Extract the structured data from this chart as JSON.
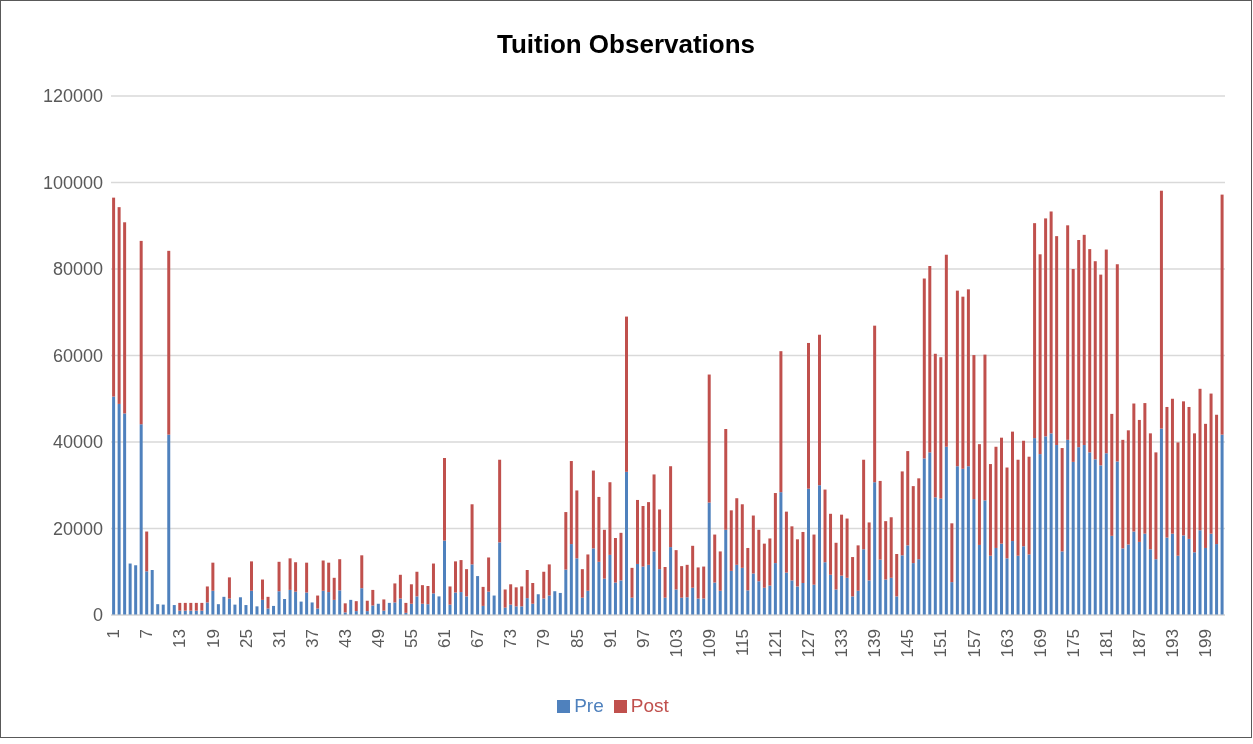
{
  "chart_data": {
    "type": "bar",
    "title": "Tuition Observations",
    "stacked": true,
    "grid": "y",
    "legend": "bottom",
    "ylim": [
      0,
      120000
    ],
    "yticks": [
      0,
      20000,
      40000,
      60000,
      80000,
      100000,
      120000
    ],
    "categories": [
      "1",
      null,
      null,
      null,
      null,
      null,
      "7",
      null,
      null,
      null,
      null,
      null,
      "13",
      null,
      null,
      null,
      null,
      null,
      "19",
      null,
      null,
      null,
      null,
      null,
      "25",
      null,
      null,
      null,
      null,
      null,
      "31",
      null,
      null,
      null,
      null,
      null,
      "37",
      null,
      null,
      null,
      null,
      null,
      "43",
      null,
      null,
      null,
      null,
      null,
      "49",
      null,
      null,
      null,
      null,
      null,
      "55",
      null,
      null,
      null,
      null,
      null,
      "61",
      null,
      null,
      null,
      null,
      null,
      "67",
      null,
      null,
      null,
      null,
      null,
      "73",
      null,
      null,
      null,
      null,
      null,
      "79",
      null,
      null,
      null,
      null,
      null,
      "85",
      null,
      null,
      null,
      null,
      null,
      "91",
      null,
      null,
      null,
      null,
      null,
      "97",
      null,
      null,
      null,
      null,
      null,
      "103",
      null,
      null,
      null,
      null,
      null,
      "109",
      null,
      null,
      null,
      null,
      null,
      "115",
      null,
      null,
      null,
      null,
      null,
      "121",
      null,
      null,
      null,
      null,
      null,
      "127",
      null,
      null,
      null,
      null,
      null,
      "133",
      null,
      null,
      null,
      null,
      null,
      "139",
      null,
      null,
      null,
      null,
      null,
      "145",
      null,
      null,
      null,
      null,
      null,
      "151",
      null,
      null,
      null,
      null,
      null,
      "157",
      null,
      null,
      null,
      null,
      null,
      "163",
      null,
      null,
      null,
      null,
      null,
      "169",
      null,
      null,
      null,
      null,
      null,
      "175",
      null,
      null,
      null,
      null,
      null,
      "181",
      null,
      null,
      null,
      null,
      null,
      "187",
      null,
      null,
      null,
      null,
      null,
      "193",
      null,
      null,
      null,
      null,
      null,
      "199",
      null,
      null,
      null
    ],
    "series": [
      {
        "name": "Pre",
        "color": "#4f81bd",
        "values": [
          50500,
          48800,
          46600,
          11900,
          11500,
          44100,
          10100,
          10400,
          2500,
          2400,
          41700,
          2300,
          1000,
          1000,
          1000,
          1000,
          1000,
          2900,
          5600,
          2500,
          4200,
          3800,
          2400,
          4100,
          2300,
          5600,
          2000,
          3500,
          1500,
          2100,
          5500,
          3700,
          5800,
          5400,
          3100,
          5200,
          2900,
          1500,
          5600,
          5300,
          3500,
          5700,
          600,
          3500,
          900,
          6200,
          900,
          2200,
          2600,
          1000,
          2800,
          2900,
          3800,
          500,
          2600,
          4300,
          2600,
          2500,
          5000,
          4300,
          17200,
          2400,
          5200,
          5300,
          4300,
          11700,
          9000,
          2100,
          5400,
          4500,
          16800,
          1700,
          2400,
          2000,
          2000,
          3900,
          2600,
          4800,
          3800,
          4500,
          5500,
          5100,
          10500,
          16400,
          13100,
          4000,
          5600,
          15400,
          12300,
          8400,
          13900,
          7500,
          8000,
          33100,
          4000,
          11800,
          11200,
          11600,
          14700,
          10600,
          4000,
          15700,
          5900,
          4000,
          4100,
          6300,
          3800,
          3800,
          26000,
          7500,
          5600,
          19700,
          10200,
          11600,
          10900,
          5700,
          9600,
          7800,
          6300,
          6800,
          12000,
          28400,
          9800,
          8000,
          6600,
          7400,
          29200,
          7000,
          30000,
          12200,
          9300,
          5900,
          9100,
          8600,
          4300,
          5600,
          15200,
          8000,
          30700,
          12800,
          8200,
          8600,
          4300,
          13800,
          16100,
          12000,
          12900,
          36200,
          37600,
          27200,
          26900,
          38900,
          7600,
          34400,
          33800,
          34400,
          26800,
          16200,
          26500,
          13700,
          15500,
          16500,
          13100,
          17100,
          13700,
          15900,
          14000,
          40900,
          37200,
          41300,
          42000,
          39300,
          14700,
          40500,
          35400,
          38800,
          39300,
          37600,
          36000,
          34600,
          37400,
          18300,
          35500,
          15400,
          16300,
          19300,
          16900,
          18800,
          15200,
          12900,
          43100,
          17900,
          18800,
          13700,
          18400,
          17600,
          14500,
          19600,
          15500,
          18800,
          16400,
          41700
        ]
      },
      {
        "name": "Post",
        "color": "#c0504d",
        "values": [
          46000,
          45500,
          44200,
          0,
          0,
          42400,
          9200,
          0,
          0,
          0,
          42500,
          0,
          1800,
          1800,
          1800,
          1800,
          1800,
          3700,
          6500,
          0,
          0,
          4900,
          0,
          0,
          0,
          6800,
          0,
          4700,
          2700,
          0,
          6800,
          0,
          7300,
          6800,
          0,
          6900,
          0,
          3000,
          7000,
          6800,
          5100,
          7200,
          2100,
          0,
          2300,
          7600,
          2400,
          3600,
          0,
          2600,
          0,
          4400,
          5500,
          2300,
          4500,
          5700,
          4300,
          4200,
          6900,
          0,
          19100,
          4200,
          7200,
          7400,
          6300,
          13900,
          0,
          4400,
          7900,
          0,
          19100,
          4200,
          4700,
          4400,
          4600,
          6500,
          4800,
          0,
          6200,
          7200,
          0,
          0,
          13300,
          19200,
          15700,
          6600,
          8400,
          18000,
          15000,
          11300,
          16800,
          10300,
          11000,
          35900,
          6900,
          14800,
          14000,
          14500,
          17800,
          13800,
          7100,
          18700,
          9100,
          7300,
          7500,
          9700,
          7200,
          7400,
          29600,
          11100,
          9100,
          23300,
          14000,
          15400,
          14700,
          9800,
          13400,
          11900,
          10200,
          10900,
          16200,
          32600,
          14100,
          12500,
          10900,
          11800,
          33700,
          11600,
          34800,
          16800,
          14100,
          10800,
          14100,
          13700,
          9100,
          10500,
          20700,
          13400,
          36200,
          18200,
          13500,
          14000,
          9800,
          19400,
          21800,
          17800,
          18700,
          41600,
          43100,
          33200,
          32700,
          44400,
          13600,
          40600,
          39800,
          40900,
          33300,
          23300,
          33700,
          21200,
          23400,
          24500,
          21000,
          25300,
          22200,
          24400,
          22600,
          49700,
          46200,
          50400,
          51300,
          48300,
          23900,
          49600,
          44600,
          47900,
          48600,
          47000,
          45800,
          44100,
          47100,
          28200,
          45600,
          25100,
          26400,
          29600,
          28200,
          30200,
          26800,
          24700,
          55000,
          30200,
          31200,
          26200,
          31000,
          30500,
          27500,
          32700,
          28700,
          32400,
          29900,
          55500
        ]
      }
    ]
  }
}
